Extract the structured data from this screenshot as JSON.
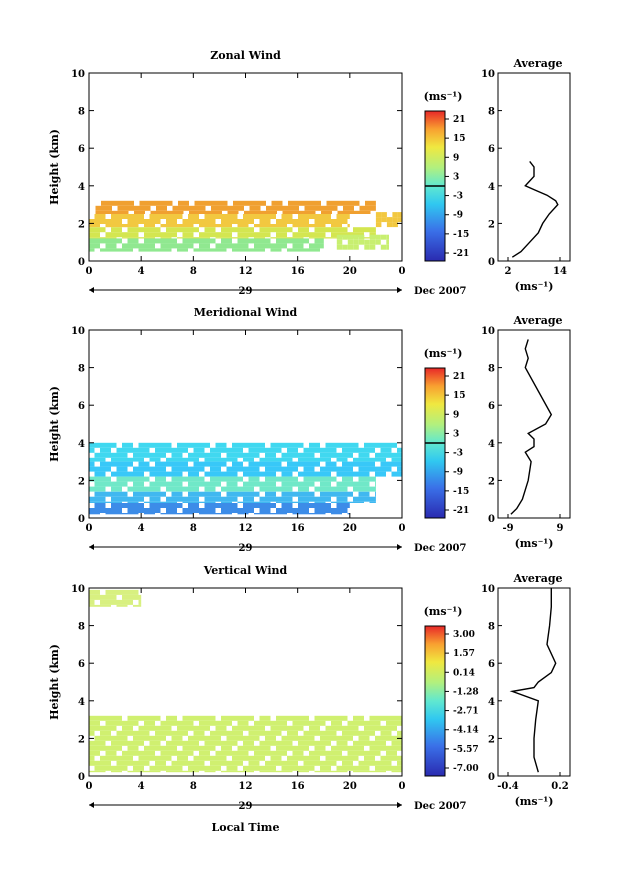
{
  "chart_data": [
    {
      "type": "heatmap",
      "title": "Zonal Wind",
      "ylabel": "Height (km)",
      "xticks": [
        "0",
        "4",
        "8",
        "12",
        "16",
        "20",
        "0"
      ],
      "yticks": [
        "0",
        "2",
        "4",
        "6",
        "8",
        "10"
      ],
      "xlim": [
        0,
        24
      ],
      "ylim": [
        0,
        10
      ],
      "day_label": "29",
      "date_label": "Dec 2007",
      "colorbar": {
        "unit": "(ms⁻¹)",
        "ticks": [
          "21",
          "15",
          "9",
          "3",
          "-3",
          "-9",
          "-15",
          "-21"
        ]
      },
      "bands": [
        {
          "y0": 2.5,
          "y1": 3.2,
          "x0": 0.5,
          "x1": 22,
          "color": "#f0a030"
        },
        {
          "y0": 1.8,
          "y1": 2.5,
          "x0": 0,
          "x1": 20,
          "color": "#f2c840"
        },
        {
          "y0": 1.2,
          "y1": 1.8,
          "x0": 0,
          "x1": 22,
          "color": "#d4e650"
        },
        {
          "y0": 0.5,
          "y1": 1.2,
          "x0": 0,
          "x1": 18,
          "color": "#90e890"
        },
        {
          "y0": 1.8,
          "y1": 2.6,
          "x0": 22,
          "x1": 24,
          "color": "#f2c840"
        },
        {
          "y0": 0.6,
          "y1": 1.4,
          "x0": 19,
          "x1": 23,
          "color": "#c8ef70"
        }
      ],
      "average": {
        "title": "Average",
        "xticks": [
          "2",
          "14"
        ],
        "xlim": [
          2,
          14
        ],
        "xlabel": "(ms⁻¹)",
        "height": [
          0.2,
          0.5,
          1.0,
          1.5,
          2.0,
          2.5,
          3.0,
          3.2,
          3.5,
          3.8,
          4.0,
          4.5,
          5.0,
          5.3
        ],
        "value": [
          3,
          5,
          7,
          9,
          10,
          11.5,
          13.5,
          13,
          11,
          8,
          6,
          8,
          8,
          7
        ]
      }
    },
    {
      "type": "heatmap",
      "title": "Meridional Wind",
      "ylabel": "Height (km)",
      "xticks": [
        "0",
        "4",
        "8",
        "12",
        "16",
        "20",
        "0"
      ],
      "yticks": [
        "0",
        "2",
        "4",
        "6",
        "8",
        "10"
      ],
      "xlim": [
        0,
        24
      ],
      "ylim": [
        0,
        10
      ],
      "day_label": "29",
      "date_label": "Dec 2007",
      "colorbar": {
        "unit": "(ms⁻¹)",
        "ticks": [
          "21",
          "15",
          "9",
          "3",
          "-3",
          "-9",
          "-15",
          "-21"
        ]
      },
      "bands": [
        {
          "y0": 3.0,
          "y1": 4.0,
          "x0": 0,
          "x1": 24,
          "color": "#40d8f0"
        },
        {
          "y0": 2.2,
          "y1": 3.0,
          "x0": 0,
          "x1": 24,
          "color": "#38c8f8"
        },
        {
          "y0": 1.4,
          "y1": 2.2,
          "x0": 0,
          "x1": 22,
          "color": "#70e8c8"
        },
        {
          "y0": 0.8,
          "y1": 1.4,
          "x0": 0,
          "x1": 22,
          "color": "#40b8f0"
        },
        {
          "y0": 0.2,
          "y1": 0.8,
          "x0": 0,
          "x1": 20,
          "color": "#3c8ce8"
        }
      ],
      "average": {
        "title": "Average",
        "xticks": [
          "-9",
          "9"
        ],
        "xlim": [
          -9,
          9
        ],
        "xlabel": "(ms⁻¹)",
        "height": [
          0.2,
          0.5,
          1.0,
          1.5,
          2.0,
          3.0,
          3.5,
          3.8,
          4.2,
          4.5,
          5.0,
          5.5,
          8.0,
          8.5,
          9.0,
          9.5
        ],
        "value": [
          -8,
          -6,
          -4,
          -3,
          -2,
          -1,
          -3,
          0,
          0,
          -2,
          4,
          6,
          -3,
          -2,
          -3,
          -2
        ]
      }
    },
    {
      "type": "heatmap",
      "title": "Vertical Wind",
      "ylabel": "Height (km)",
      "xlabel": "Local Time",
      "xticks": [
        "0",
        "4",
        "8",
        "12",
        "16",
        "20",
        "0"
      ],
      "yticks": [
        "0",
        "2",
        "4",
        "6",
        "8",
        "10"
      ],
      "xlim": [
        0,
        24
      ],
      "ylim": [
        0,
        10
      ],
      "day_label": "29",
      "date_label": "Dec 2007",
      "colorbar": {
        "unit": "(ms⁻¹)",
        "ticks": [
          "3.00",
          "1.57",
          "0.14",
          "-1.28",
          "-2.71",
          "-4.14",
          "-5.57",
          "-7.00"
        ]
      },
      "bands": [
        {
          "y0": 0.2,
          "y1": 3.2,
          "x0": 0,
          "x1": 24,
          "color": "#d0f070"
        },
        {
          "y0": 9.0,
          "y1": 9.9,
          "x0": 0,
          "x1": 4,
          "color": "#d8f080"
        }
      ],
      "average": {
        "title": "Average",
        "xticks": [
          "-0.4",
          "0.2"
        ],
        "xlim": [
          -0.4,
          0.2
        ],
        "xlabel": "(ms⁻¹)",
        "height": [
          0.2,
          1.0,
          2.0,
          3.0,
          4.0,
          4.5,
          4.7,
          5.0,
          5.5,
          6.0,
          7.0,
          8.0,
          9.0,
          10.0
        ],
        "value": [
          -0.05,
          -0.1,
          -0.1,
          -0.08,
          -0.05,
          -0.35,
          -0.1,
          -0.05,
          0.1,
          0.15,
          0.05,
          0.08,
          0.1,
          0.1
        ]
      }
    }
  ]
}
